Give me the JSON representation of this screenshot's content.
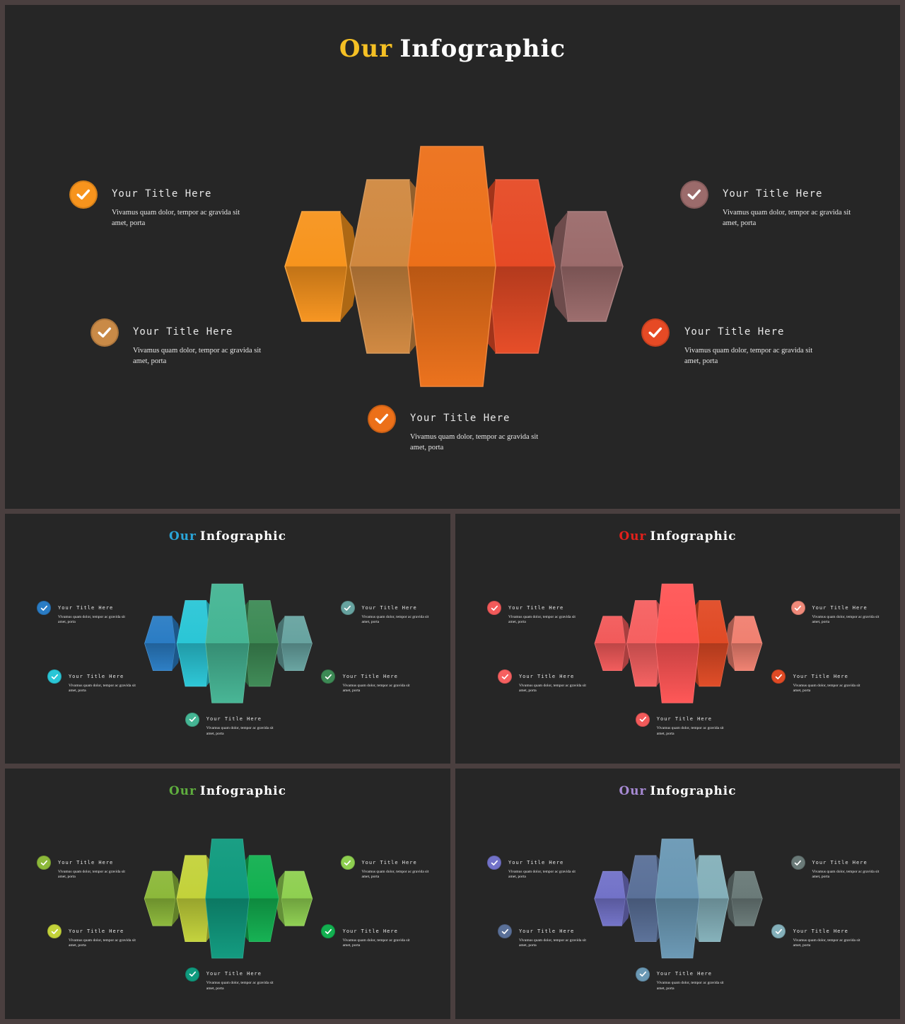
{
  "slides": [
    {
      "title_accent": "Our",
      "title_rest": "Infographic",
      "accent_color": "#f5c024",
      "prisms": [
        "#f7941d",
        "#d0883f",
        "#ec7019",
        "#e64a25",
        "#9b6b6b"
      ],
      "items": [
        {
          "title": "Your Title Here",
          "body": "Vivamus quam dolor, tempor ac gravida sit amet, porta",
          "color": "#f7941d",
          "icon": "check-icon"
        },
        {
          "title": "Your Title Here",
          "body": "Vivamus quam dolor, tempor ac gravida sit amet, porta",
          "color": "#c98a47",
          "icon": "check-icon"
        },
        {
          "title": "Your Title Here",
          "body": "Vivamus quam dolor, tempor ac gravida sit amet, porta",
          "color": "#ec7019",
          "icon": "check-icon"
        },
        {
          "title": "Your Title Here",
          "body": "Vivamus quam dolor, tempor ac gravida sit amet, porta",
          "color": "#e64a25",
          "icon": "check-icon"
        },
        {
          "title": "Your Title Here",
          "body": "Vivamus quam dolor, tempor ac gravida sit amet, porta",
          "color": "#9b6b6b",
          "icon": "check-icon"
        }
      ]
    },
    {
      "title_accent": "Our",
      "title_rest": "Infographic",
      "accent_color": "#2aa6d9",
      "prisms": [
        "#2a7cc4",
        "#2ac6d6",
        "#45b594",
        "#3d8a55",
        "#67a3a0"
      ],
      "items": [
        {
          "title": "Your Title Here",
          "body": "Vivamus quam dolor, tempor ac gravida sit amet, porta",
          "color": "#2a7cc4",
          "icon": "check-icon"
        },
        {
          "title": "Your Title Here",
          "body": "Vivamus quam dolor, tempor ac gravida sit amet, porta",
          "color": "#2ac6d6",
          "icon": "check-icon"
        },
        {
          "title": "Your Title Here",
          "body": "Vivamus quam dolor, tempor ac gravida sit amet, porta",
          "color": "#45b594",
          "icon": "check-icon"
        },
        {
          "title": "Your Title Here",
          "body": "Vivamus quam dolor, tempor ac gravida sit amet, porta",
          "color": "#3d8a55",
          "icon": "check-icon"
        },
        {
          "title": "Your Title Here",
          "body": "Vivamus quam dolor, tempor ac gravida sit amet, porta",
          "color": "#67a3a0",
          "icon": "check-icon"
        }
      ]
    },
    {
      "title_accent": "Our",
      "title_rest": "Infographic",
      "accent_color": "#e3201b",
      "prisms": [
        "#f25a5a",
        "#f66060",
        "#ff5555",
        "#e04a25",
        "#f08070"
      ],
      "items": [
        {
          "title": "Your Title Here",
          "body": "Vivamus quam dolor, tempor ac gravida sit amet, porta",
          "color": "#f25a5a",
          "icon": "check-icon"
        },
        {
          "title": "Your Title Here",
          "body": "Vivamus quam dolor, tempor ac gravida sit amet, porta",
          "color": "#f66060",
          "icon": "check-icon"
        },
        {
          "title": "Your Title Here",
          "body": "Vivamus quam dolor, tempor ac gravida sit amet, porta",
          "color": "#f25a5a",
          "icon": "check-icon"
        },
        {
          "title": "Your Title Here",
          "body": "Vivamus quam dolor, tempor ac gravida sit amet, porta",
          "color": "#e04a25",
          "icon": "check-icon"
        },
        {
          "title": "Your Title Here",
          "body": "Vivamus quam dolor, tempor ac gravida sit amet, porta",
          "color": "#f08a7a",
          "icon": "check-icon"
        }
      ]
    },
    {
      "title_accent": "Our",
      "title_rest": "Infographic",
      "accent_color": "#5fae3e",
      "prisms": [
        "#8cb83a",
        "#c3d23a",
        "#0f9a7e",
        "#12b050",
        "#8ecf50"
      ],
      "items": [
        {
          "title": "Your Title Here",
          "body": "Vivamus quam dolor, tempor ac gravida sit amet, porta",
          "color": "#8cb83a",
          "icon": "check-icon"
        },
        {
          "title": "Your Title Here",
          "body": "Vivamus quam dolor, tempor ac gravida sit amet, porta",
          "color": "#c3d23a",
          "icon": "check-icon"
        },
        {
          "title": "Your Title Here",
          "body": "Vivamus quam dolor, tempor ac gravida sit amet, porta",
          "color": "#0f9a7e",
          "icon": "check-icon"
        },
        {
          "title": "Your Title Here",
          "body": "Vivamus quam dolor, tempor ac gravida sit amet, porta",
          "color": "#12b050",
          "icon": "check-icon"
        },
        {
          "title": "Your Title Here",
          "body": "Vivamus quam dolor, tempor ac gravida sit amet, porta",
          "color": "#8ecf50",
          "icon": "check-icon"
        }
      ]
    },
    {
      "title_accent": "Our",
      "title_rest": "Infographic",
      "accent_color": "#a78ad4",
      "prisms": [
        "#7272c8",
        "#5a7098",
        "#6a98b4",
        "#84b0ba",
        "#6a7a78"
      ],
      "items": [
        {
          "title": "Your Title Here",
          "body": "Vivamus quam dolor, tempor ac gravida sit amet, porta",
          "color": "#7272c8",
          "icon": "check-icon"
        },
        {
          "title": "Your Title Here",
          "body": "Vivamus quam dolor, tempor ac gravida sit amet, porta",
          "color": "#5a7098",
          "icon": "check-icon"
        },
        {
          "title": "Your Title Here",
          "body": "Vivamus quam dolor, tempor ac gravida sit amet, porta",
          "color": "#6a98b4",
          "icon": "check-icon"
        },
        {
          "title": "Your Title Here",
          "body": "Vivamus quam dolor, tempor ac gravida sit amet, porta",
          "color": "#84b0ba",
          "icon": "check-icon"
        },
        {
          "title": "Your Title Here",
          "body": "Vivamus quam dolor, tempor ac gravida sit amet, porta",
          "color": "#6a7a78",
          "icon": "check-icon"
        }
      ]
    }
  ]
}
